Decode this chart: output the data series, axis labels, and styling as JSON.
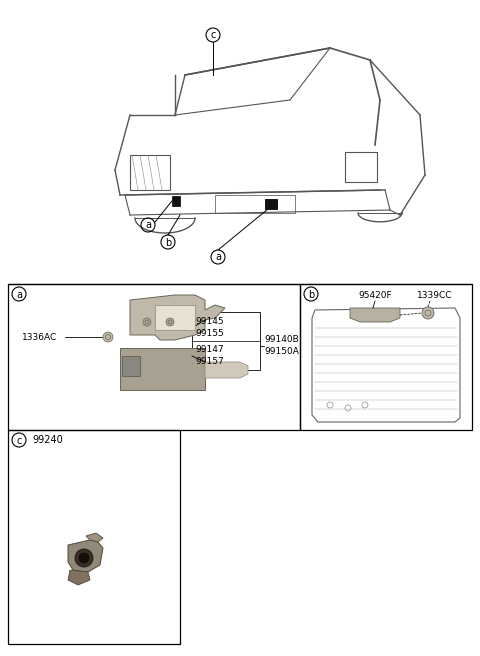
{
  "bg_color": "#ffffff",
  "border_color": "#000000",
  "text_color": "#000000",
  "panel_a": {
    "label": "a",
    "left_part_label": "1336AC",
    "inner_box_labels_top": [
      "99145",
      "99155"
    ],
    "inner_box_labels_bot": [
      "99147",
      "99157"
    ],
    "outer_labels": [
      "99140B",
      "99150A"
    ]
  },
  "panel_b": {
    "label": "b",
    "labels_top": [
      "95420F",
      "1339CC"
    ]
  },
  "panel_c": {
    "label": "c",
    "part_label": "99240"
  },
  "car_labels": {
    "c": "c",
    "a1": "a",
    "b1": "b",
    "a2": "a"
  },
  "layout": {
    "fig_width": 4.8,
    "fig_height": 6.56,
    "dpi": 100
  }
}
